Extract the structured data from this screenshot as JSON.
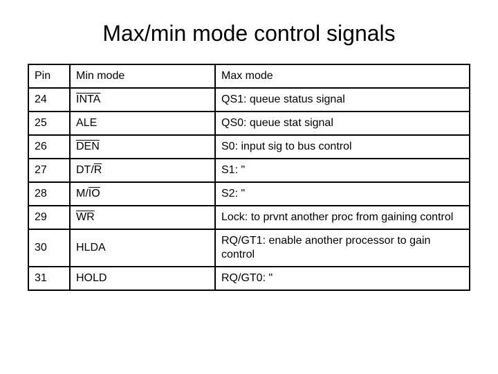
{
  "title": "Max/min mode control signals",
  "table": {
    "columns": [
      "Pin",
      "Min mode",
      "Max mode"
    ],
    "rows": [
      {
        "pin": "24",
        "min_plain": "",
        "min_over": "INTA",
        "min_after": "",
        "max": "QS1: queue status signal"
      },
      {
        "pin": "25",
        "min_plain": "ALE",
        "min_over": "",
        "min_after": "",
        "max": "QS0: queue stat signal"
      },
      {
        "pin": "26",
        "min_plain": "",
        "min_over": "DEN",
        "min_after": "",
        "max": "S0: input sig to bus control"
      },
      {
        "pin": "27",
        "min_plain": "DT/",
        "min_over": "R",
        "min_after": "",
        "max": "S1:  \""
      },
      {
        "pin": "28",
        "min_plain": "M/",
        "min_over": "IO",
        "min_after": "",
        "max": "S2: \""
      },
      {
        "pin": "29",
        "min_plain": "",
        "min_over": "WR",
        "min_after": "",
        "max": "Lock: to prvnt another proc from gaining control"
      },
      {
        "pin": "30",
        "min_plain": "HLDA",
        "min_over": "",
        "min_after": "",
        "max": "RQ/GT1: enable another processor to gain control"
      },
      {
        "pin": "31",
        "min_plain": "HOLD",
        "min_over": "",
        "min_after": "",
        "max": "RQ/GT0: \""
      }
    ]
  },
  "style": {
    "background_color": "#ffffff",
    "text_color": "#000000",
    "border_color": "#000000",
    "title_fontsize": 32,
    "cell_fontsize": 16,
    "font_family": "Arial"
  }
}
